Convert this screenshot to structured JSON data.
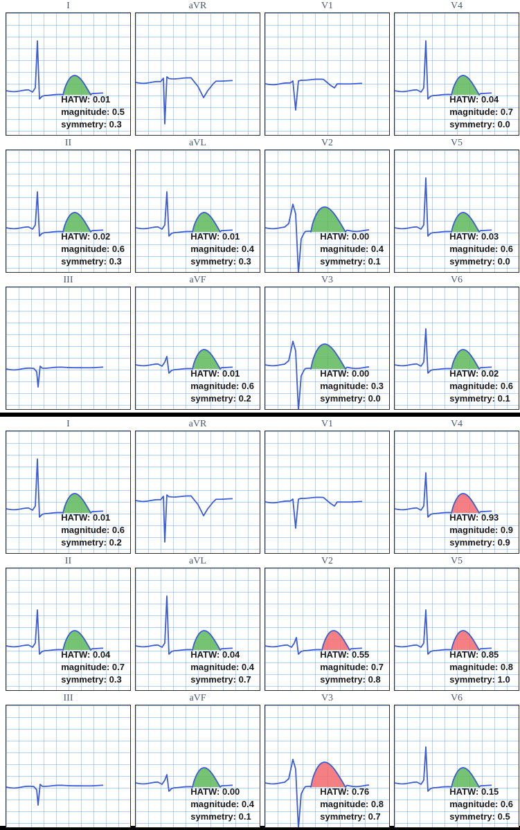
{
  "colors": {
    "trace": "#3a5bd6",
    "normal_fill": "#5fb85c",
    "abnormal_fill": "#f36a6f",
    "grid": "#9cc3ee"
  },
  "metric_labels": {
    "hatw": "HATW:",
    "magnitude": "magnitude:",
    "symmetry": "symmetry:"
  },
  "groups": [
    {
      "leads": [
        {
          "name": "I",
          "hatw": "0.01",
          "magnitude": "0.5",
          "symmetry": "0.3",
          "wave": "tall",
          "fill": "normal"
        },
        {
          "name": "aVR",
          "hatw": "",
          "magnitude": "",
          "symmetry": "",
          "wave": "avr",
          "fill": "none"
        },
        {
          "name": "V1",
          "hatw": "",
          "magnitude": "",
          "symmetry": "",
          "wave": "v1",
          "fill": "none"
        },
        {
          "name": "V4",
          "hatw": "0.04",
          "magnitude": "0.7",
          "symmetry": "0.0",
          "wave": "tall",
          "fill": "normal"
        },
        {
          "name": "II",
          "hatw": "0.02",
          "magnitude": "0.6",
          "symmetry": "0.3",
          "wave": "medium",
          "fill": "normal"
        },
        {
          "name": "aVL",
          "hatw": "0.01",
          "magnitude": "0.4",
          "symmetry": "0.3",
          "wave": "medium",
          "fill": "normal"
        },
        {
          "name": "V2",
          "hatw": "0.00",
          "magnitude": "0.4",
          "symmetry": "0.1",
          "wave": "deepqs",
          "fill": "normal"
        },
        {
          "name": "V5",
          "hatw": "0.03",
          "magnitude": "0.6",
          "symmetry": "0.0",
          "wave": "tall",
          "fill": "normal"
        },
        {
          "name": "III",
          "hatw": "",
          "magnitude": "",
          "symmetry": "",
          "wave": "flat",
          "fill": "none"
        },
        {
          "name": "aVF",
          "hatw": "0.01",
          "magnitude": "0.6",
          "symmetry": "0.2",
          "wave": "small",
          "fill": "normal"
        },
        {
          "name": "V3",
          "hatw": "0.00",
          "magnitude": "0.3",
          "symmetry": "0.0",
          "wave": "rs",
          "fill": "normal"
        },
        {
          "name": "V6",
          "hatw": "0.02",
          "magnitude": "0.6",
          "symmetry": "0.1",
          "wave": "medium",
          "fill": "normal"
        }
      ]
    },
    {
      "leads": [
        {
          "name": "I",
          "hatw": "0.01",
          "magnitude": "0.6",
          "symmetry": "0.2",
          "wave": "tall",
          "fill": "normal"
        },
        {
          "name": "aVR",
          "hatw": "",
          "magnitude": "",
          "symmetry": "",
          "wave": "avr",
          "fill": "none"
        },
        {
          "name": "V1",
          "hatw": "",
          "magnitude": "",
          "symmetry": "",
          "wave": "v1",
          "fill": "none"
        },
        {
          "name": "V4",
          "hatw": "0.93",
          "magnitude": "0.9",
          "symmetry": "0.9",
          "wave": "medium",
          "fill": "abnormal"
        },
        {
          "name": "II",
          "hatw": "0.04",
          "magnitude": "0.7",
          "symmetry": "0.3",
          "wave": "medium",
          "fill": "normal"
        },
        {
          "name": "aVL",
          "hatw": "0.04",
          "magnitude": "0.4",
          "symmetry": "0.7",
          "wave": "tall",
          "fill": "normal"
        },
        {
          "name": "V2",
          "hatw": "0.55",
          "magnitude": "0.7",
          "symmetry": "0.8",
          "wave": "small",
          "fill": "abnormal"
        },
        {
          "name": "V5",
          "hatw": "0.85",
          "magnitude": "0.8",
          "symmetry": "1.0",
          "wave": "medium",
          "fill": "abnormal"
        },
        {
          "name": "III",
          "hatw": "",
          "magnitude": "",
          "symmetry": "",
          "wave": "flat",
          "fill": "none"
        },
        {
          "name": "aVF",
          "hatw": "0.00",
          "magnitude": "0.4",
          "symmetry": "0.1",
          "wave": "small",
          "fill": "normal"
        },
        {
          "name": "V3",
          "hatw": "0.76",
          "magnitude": "0.8",
          "symmetry": "0.7",
          "wave": "rs",
          "fill": "abnormal"
        },
        {
          "name": "V6",
          "hatw": "0.15",
          "magnitude": "0.6",
          "symmetry": "0.5",
          "wave": "medium",
          "fill": "normal"
        }
      ]
    }
  ]
}
